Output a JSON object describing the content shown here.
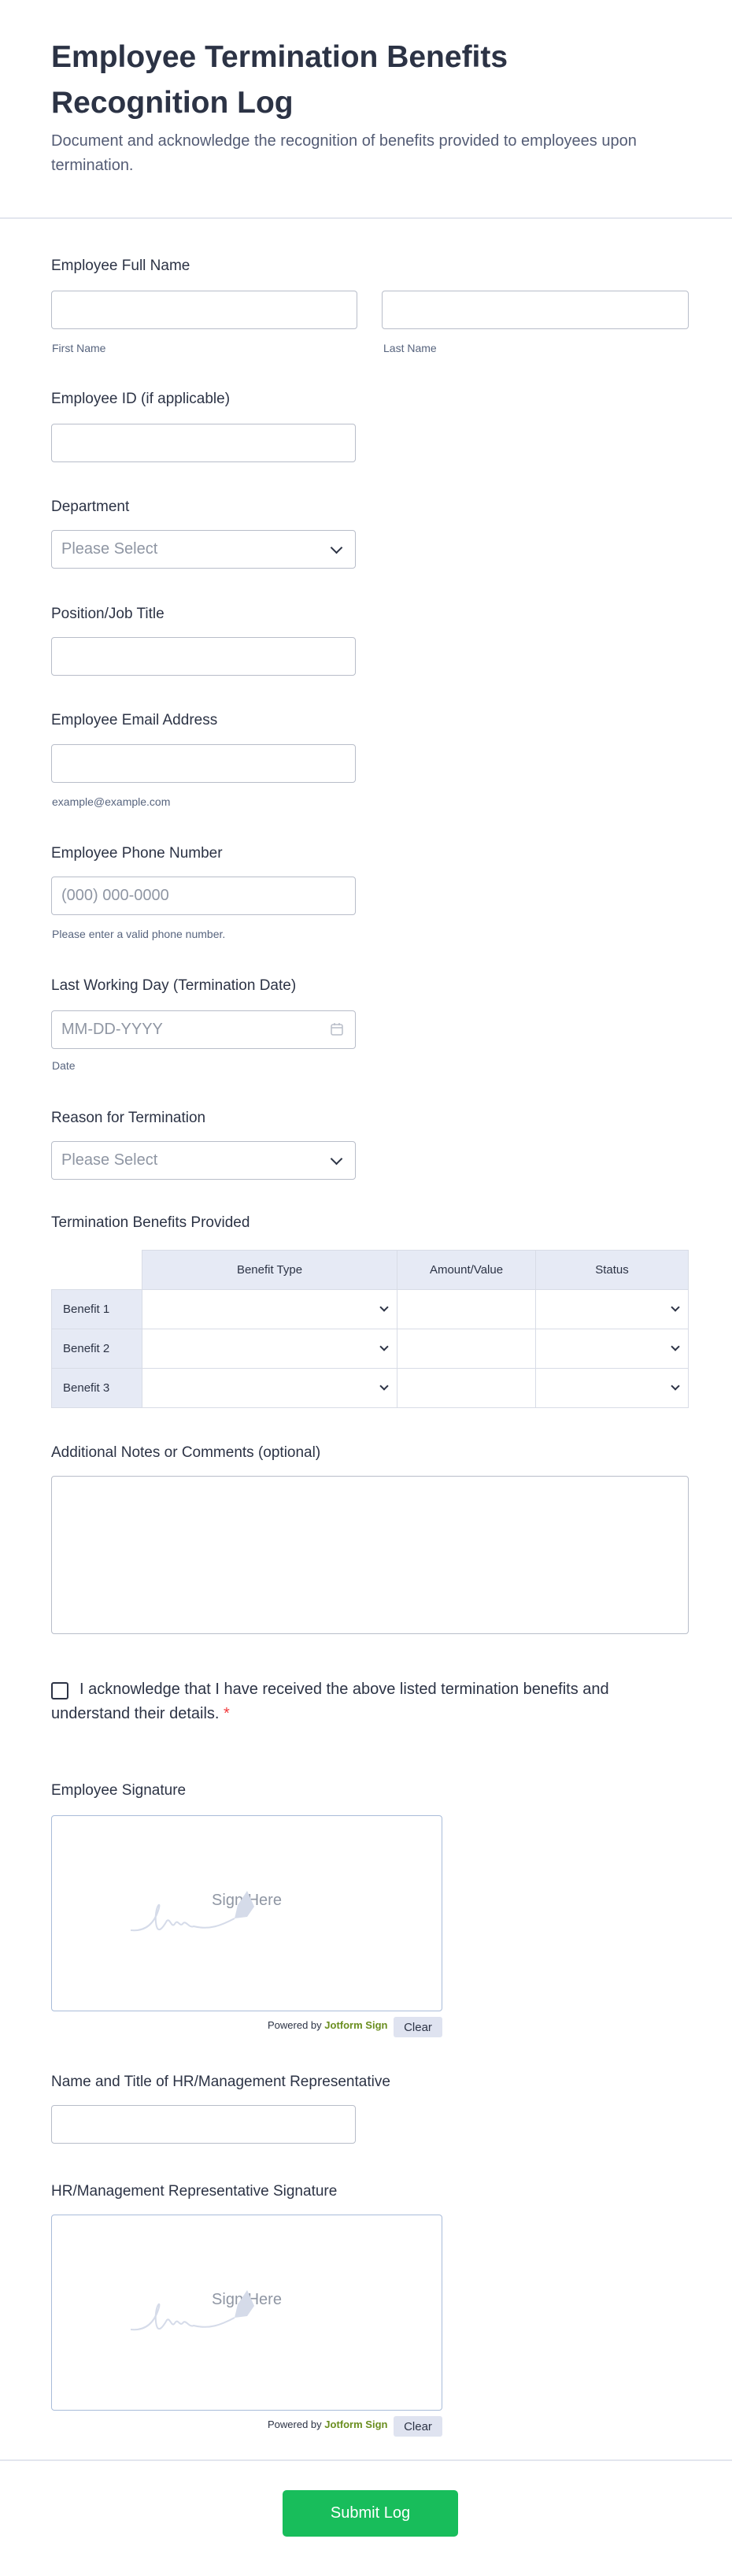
{
  "header": {
    "title": "Employee Termination Benefits Recognition Log",
    "description": "Document and acknowledge the recognition of benefits provided to employees upon termination."
  },
  "fields": {
    "full_name": {
      "label": "Employee Full Name",
      "first_sublabel": "First Name",
      "last_sublabel": "Last Name",
      "first_value": "",
      "last_value": ""
    },
    "employee_id": {
      "label": "Employee ID (if applicable)",
      "value": ""
    },
    "department": {
      "label": "Department",
      "placeholder": "Please Select"
    },
    "position": {
      "label": "Position/Job Title",
      "value": ""
    },
    "email": {
      "label": "Employee Email Address",
      "value": "",
      "sublabel": "example@example.com"
    },
    "phone": {
      "label": "Employee Phone Number",
      "placeholder": "(000) 000-0000",
      "sublabel": "Please enter a valid phone number."
    },
    "last_day": {
      "label": "Last Working Day (Termination Date)",
      "placeholder": "MM-DD-YYYY",
      "sublabel": "Date",
      "icon": "calendar-icon"
    },
    "reason": {
      "label": "Reason for Termination",
      "placeholder": "Please Select"
    },
    "benefits": {
      "label": "Termination Benefits Provided",
      "columns": [
        "Benefit Type",
        "Amount/Value",
        "Status"
      ],
      "rows": [
        "Benefit 1",
        "Benefit 2",
        "Benefit 3"
      ]
    },
    "notes": {
      "label": "Additional Notes or Comments (optional)",
      "value": ""
    },
    "acknowledge": {
      "text": "I acknowledge that I have received the above listed termination benefits and understand their details.",
      "required_mark": "*",
      "checked": false
    },
    "employee_signature": {
      "label": "Employee Signature",
      "placeholder": "Sign Here",
      "powered_by": "Powered by",
      "brand": "Jotform Sign",
      "clear_label": "Clear"
    },
    "hr_name": {
      "label": "Name and Title of HR/Management Representative",
      "value": ""
    },
    "hr_signature": {
      "label": "HR/Management Representative Signature",
      "placeholder": "Sign Here",
      "powered_by": "Powered by",
      "brand": "Jotform Sign",
      "clear_label": "Clear"
    }
  },
  "footer": {
    "submit_label": "Submit Log"
  },
  "colors": {
    "submit": "#18bd5b",
    "brand": "#6a8e1f",
    "required": "#f23a3c",
    "matrix_header": "#e6eaf5"
  }
}
